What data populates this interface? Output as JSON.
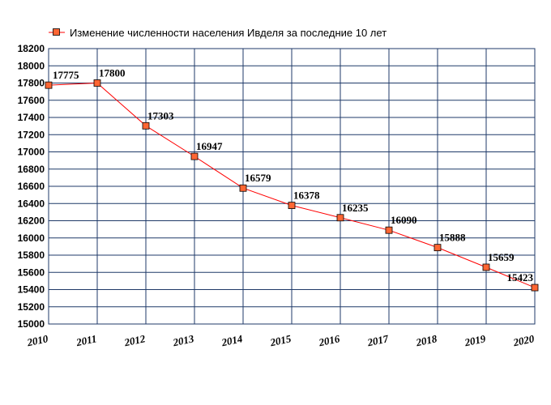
{
  "chart_data": {
    "type": "line",
    "title": "",
    "xlabel": "",
    "ylabel": "",
    "legend_position": "top",
    "grid": true,
    "x": [
      "2010",
      "2011",
      "2012",
      "2013",
      "2014",
      "2015",
      "2016",
      "2017",
      "2018",
      "2019",
      "2020"
    ],
    "ylim": [
      15000,
      18200
    ],
    "yticks": [
      15000,
      15200,
      15400,
      15600,
      15800,
      16000,
      16200,
      16400,
      16600,
      16800,
      17000,
      17200,
      17400,
      17600,
      17800,
      18000,
      18200
    ],
    "series": [
      {
        "name": "Изменение численности населения Ивделя за последние 10 лет",
        "color": "#ff0000",
        "marker_color": "#ff6633",
        "points": [
          {
            "year": "2010",
            "value": 17775
          },
          {
            "year": "2011",
            "value": 17800
          },
          {
            "year": "2012",
            "value": 17303
          },
          {
            "year": "2013",
            "value": 16947
          },
          {
            "year": "2014",
            "value": 16579
          },
          {
            "year": "2015",
            "value": 16378
          },
          {
            "year": "2016",
            "value": 16235
          },
          {
            "year": "2017",
            "value": 16090
          },
          {
            "year": "2018",
            "value": 15888
          },
          {
            "year": "2019",
            "value": 15659
          },
          {
            "year": "2020",
            "value": 15423
          }
        ]
      }
    ],
    "grid_color": "#1f3a68"
  }
}
